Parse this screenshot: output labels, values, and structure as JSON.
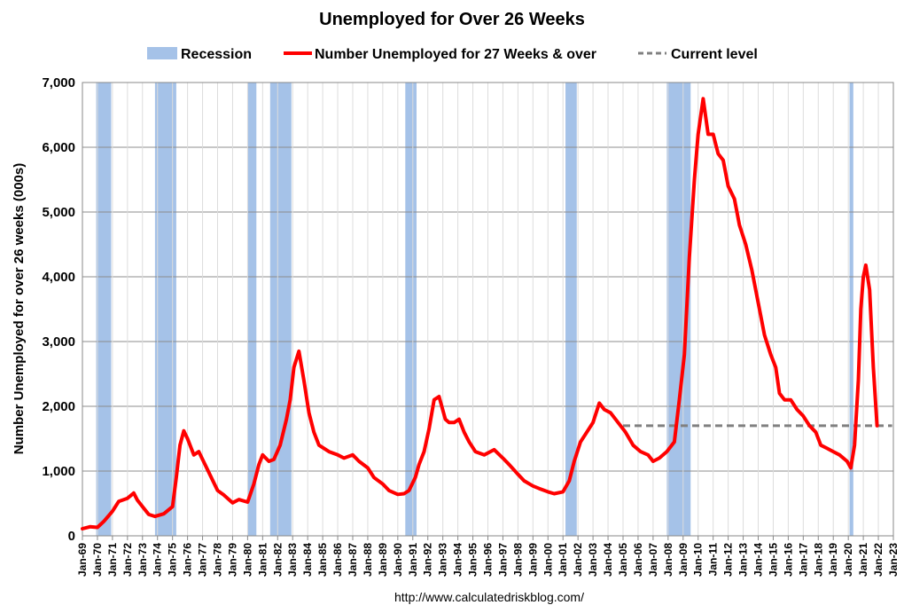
{
  "chart_data": {
    "type": "line",
    "title": "Unemployed for Over 26 Weeks",
    "ylabel": "Number Unemployed for over 26 weeks (000s)",
    "xlabel": "",
    "ylim": [
      0,
      7000
    ],
    "yticks": [
      0,
      1000,
      2000,
      3000,
      4000,
      5000,
      6000,
      7000
    ],
    "ytick_labels": [
      "0",
      "1,000",
      "2,000",
      "3,000",
      "4,000",
      "5,000",
      "6,000",
      "7,000"
    ],
    "xlim": [
      "1969-01",
      "2023-01"
    ],
    "x_tick_labels": [
      "Jan-69",
      "Jan-70",
      "Jan-71",
      "Jan-72",
      "Jan-73",
      "Jan-74",
      "Jan-75",
      "Jan-76",
      "Jan-77",
      "Jan-78",
      "Jan-79",
      "Jan-80",
      "Jan-81",
      "Jan-82",
      "Jan-83",
      "Jan-84",
      "Jan-85",
      "Jan-86",
      "Jan-87",
      "Jan-88",
      "Jan-89",
      "Jan-90",
      "Jan-91",
      "Jan-92",
      "Jan-93",
      "Jan-94",
      "Jan-95",
      "Jan-96",
      "Jan-97",
      "Jan-98",
      "Jan-99",
      "Jan-00",
      "Jan-01",
      "Jan-02",
      "Jan-03",
      "Jan-04",
      "Jan-05",
      "Jan-06",
      "Jan-07",
      "Jan-08",
      "Jan-09",
      "Jan-10",
      "Jan-11",
      "Jan-12",
      "Jan-13",
      "Jan-14",
      "Jan-15",
      "Jan-16",
      "Jan-17",
      "Jan-18",
      "Jan-19",
      "Jan-20",
      "Jan-21",
      "Jan-22",
      "Jan-23"
    ],
    "grid": true,
    "legend": {
      "position": "top",
      "entries": [
        {
          "label": "Recession",
          "kind": "band",
          "color": "#a5c2e8"
        },
        {
          "label": "Number Unemployed for 27 Weeks & over",
          "kind": "line",
          "color": "#ff0000"
        },
        {
          "label": "Current level",
          "kind": "dashed",
          "color": "#808080"
        }
      ]
    },
    "recessions": [
      [
        "1969-12",
        "1970-11"
      ],
      [
        "1973-11",
        "1975-03"
      ],
      [
        "1980-01",
        "1980-07"
      ],
      [
        "1981-07",
        "1982-11"
      ],
      [
        "1990-07",
        "1991-03"
      ],
      [
        "2001-03",
        "2001-11"
      ],
      [
        "2007-12",
        "2009-06"
      ],
      [
        "2020-02",
        "2020-04"
      ]
    ],
    "series": [
      {
        "name": "Number Unemployed for 27 Weeks & over",
        "color": "#ff0000",
        "points": [
          [
            "1969-01",
            110
          ],
          [
            "1969-07",
            140
          ],
          [
            "1970-01",
            130
          ],
          [
            "1970-06",
            220
          ],
          [
            "1971-01",
            380
          ],
          [
            "1971-06",
            530
          ],
          [
            "1972-01",
            580
          ],
          [
            "1972-06",
            660
          ],
          [
            "1972-09",
            550
          ],
          [
            "1973-01",
            450
          ],
          [
            "1973-06",
            330
          ],
          [
            "1973-11",
            300
          ],
          [
            "1974-06",
            340
          ],
          [
            "1975-01",
            450
          ],
          [
            "1975-04",
            900
          ],
          [
            "1975-07",
            1400
          ],
          [
            "1975-10",
            1620
          ],
          [
            "1976-01",
            1500
          ],
          [
            "1976-06",
            1250
          ],
          [
            "1976-10",
            1300
          ],
          [
            "1977-03",
            1100
          ],
          [
            "1977-08",
            900
          ],
          [
            "1978-01",
            700
          ],
          [
            "1978-06",
            630
          ],
          [
            "1979-01",
            510
          ],
          [
            "1979-06",
            560
          ],
          [
            "1980-01",
            520
          ],
          [
            "1980-06",
            800
          ],
          [
            "1980-10",
            1100
          ],
          [
            "1981-01",
            1250
          ],
          [
            "1981-06",
            1150
          ],
          [
            "1981-10",
            1180
          ],
          [
            "1982-03",
            1400
          ],
          [
            "1982-08",
            1800
          ],
          [
            "1982-11",
            2100
          ],
          [
            "1983-02",
            2600
          ],
          [
            "1983-06",
            2850
          ],
          [
            "1983-10",
            2400
          ],
          [
            "1984-02",
            1900
          ],
          [
            "1984-06",
            1600
          ],
          [
            "1984-10",
            1400
          ],
          [
            "1985-06",
            1300
          ],
          [
            "1986-01",
            1250
          ],
          [
            "1986-06",
            1200
          ],
          [
            "1987-01",
            1250
          ],
          [
            "1987-06",
            1150
          ],
          [
            "1988-01",
            1050
          ],
          [
            "1988-06",
            900
          ],
          [
            "1989-01",
            800
          ],
          [
            "1989-06",
            700
          ],
          [
            "1990-01",
            640
          ],
          [
            "1990-06",
            650
          ],
          [
            "1990-10",
            700
          ],
          [
            "1991-03",
            900
          ],
          [
            "1991-06",
            1100
          ],
          [
            "1991-10",
            1300
          ],
          [
            "1992-02",
            1650
          ],
          [
            "1992-06",
            2100
          ],
          [
            "1992-10",
            2150
          ],
          [
            "1993-03",
            1800
          ],
          [
            "1993-06",
            1750
          ],
          [
            "1993-10",
            1750
          ],
          [
            "1994-02",
            1800
          ],
          [
            "1994-06",
            1600
          ],
          [
            "1994-10",
            1450
          ],
          [
            "1995-03",
            1300
          ],
          [
            "1995-10",
            1250
          ],
          [
            "1996-06",
            1330
          ],
          [
            "1997-01",
            1200
          ],
          [
            "1997-06",
            1100
          ],
          [
            "1998-01",
            950
          ],
          [
            "1998-06",
            850
          ],
          [
            "1999-01",
            770
          ],
          [
            "1999-06",
            730
          ],
          [
            "2000-01",
            680
          ],
          [
            "2000-06",
            650
          ],
          [
            "2001-01",
            680
          ],
          [
            "2001-06",
            850
          ],
          [
            "2001-10",
            1150
          ],
          [
            "2002-03",
            1450
          ],
          [
            "2002-08",
            1600
          ],
          [
            "2003-01",
            1750
          ],
          [
            "2003-06",
            2050
          ],
          [
            "2003-10",
            1950
          ],
          [
            "2004-03",
            1900
          ],
          [
            "2004-09",
            1750
          ],
          [
            "2005-03",
            1600
          ],
          [
            "2005-09",
            1400
          ],
          [
            "2006-03",
            1300
          ],
          [
            "2006-09",
            1250
          ],
          [
            "2007-01",
            1150
          ],
          [
            "2007-06",
            1200
          ],
          [
            "2007-12",
            1300
          ],
          [
            "2008-06",
            1450
          ],
          [
            "2008-10",
            2100
          ],
          [
            "2009-02",
            2800
          ],
          [
            "2009-06",
            4300
          ],
          [
            "2009-10",
            5500
          ],
          [
            "2010-01",
            6200
          ],
          [
            "2010-05",
            6750
          ],
          [
            "2010-09",
            6200
          ],
          [
            "2011-01",
            6200
          ],
          [
            "2011-05",
            5900
          ],
          [
            "2011-09",
            5800
          ],
          [
            "2012-01",
            5400
          ],
          [
            "2012-06",
            5200
          ],
          [
            "2012-10",
            4800
          ],
          [
            "2013-03",
            4500
          ],
          [
            "2013-08",
            4100
          ],
          [
            "2014-01",
            3600
          ],
          [
            "2014-06",
            3100
          ],
          [
            "2014-11",
            2800
          ],
          [
            "2015-03",
            2600
          ],
          [
            "2015-06",
            2200
          ],
          [
            "2015-10",
            2100
          ],
          [
            "2016-03",
            2100
          ],
          [
            "2016-08",
            1950
          ],
          [
            "2017-01",
            1850
          ],
          [
            "2017-06",
            1700
          ],
          [
            "2017-11",
            1600
          ],
          [
            "2018-03",
            1400
          ],
          [
            "2018-08",
            1350
          ],
          [
            "2019-01",
            1300
          ],
          [
            "2019-06",
            1250
          ],
          [
            "2019-12",
            1150
          ],
          [
            "2020-03",
            1050
          ],
          [
            "2020-06",
            1400
          ],
          [
            "2020-09",
            2400
          ],
          [
            "2020-11",
            3500
          ],
          [
            "2021-01",
            4000
          ],
          [
            "2021-03",
            4180
          ],
          [
            "2021-06",
            3800
          ],
          [
            "2021-09",
            2600
          ],
          [
            "2021-12",
            1700
          ]
        ]
      }
    ],
    "current_level": {
      "value": 1700,
      "from": "2005-01",
      "to": "2022-12",
      "color": "#808080"
    }
  },
  "footer": {
    "source": "http://www.calculatedriskblog.com/"
  }
}
